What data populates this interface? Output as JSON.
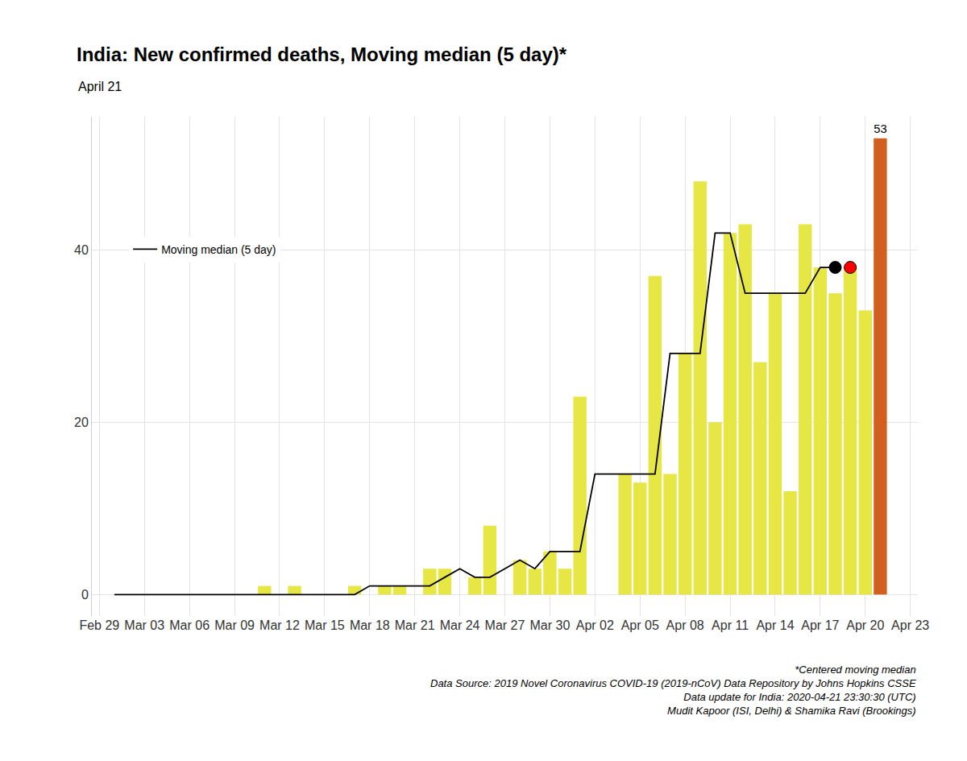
{
  "chart_data": {
    "type": "bar",
    "title": "India: New confirmed deaths, Moving median (5 day)*",
    "subtitle": "April 21",
    "caption": [
      "*Centered moving median",
      "Data Source: 2019 Novel Coronavirus COVID-19 (2019-nCoV) Data Repository by Johns Hopkins CSSE",
      "Data update for India: 2020-04-21 23:30:30 (UTC)",
      "Mudit Kapoor (ISI, Delhi) & Shamika Ravi (Brookings)"
    ],
    "categories": [
      "Feb 29",
      null,
      null,
      "Mar 03",
      null,
      null,
      "Mar 06",
      null,
      null,
      "Mar 09",
      null,
      null,
      "Mar 12",
      null,
      null,
      "Mar 15",
      null,
      null,
      "Mar 18",
      null,
      null,
      "Mar 21",
      null,
      null,
      "Mar 24",
      null,
      null,
      "Mar 27",
      null,
      null,
      "Mar 30",
      null,
      null,
      "Apr 02",
      null,
      null,
      "Apr 05",
      null,
      null,
      "Apr 08",
      null,
      null,
      "Apr 11",
      null,
      null,
      "Apr 14",
      null,
      null,
      "Apr 17",
      null,
      null,
      "Apr 20",
      null,
      null,
      "Apr 23"
    ],
    "series": [
      {
        "type": "bar",
        "values": [
          null,
          0,
          0,
          0,
          0,
          0,
          0,
          0,
          0,
          0,
          0,
          1,
          0,
          1,
          0,
          0,
          0,
          1,
          0,
          1,
          1,
          0,
          3,
          3,
          0,
          2,
          8,
          0,
          4,
          3,
          5,
          3,
          23,
          0,
          0,
          14,
          13,
          37,
          14,
          28,
          48,
          20,
          42,
          43,
          27,
          35,
          12,
          43,
          38,
          35,
          38,
          33,
          53,
          null,
          null
        ],
        "value_labels": [
          null,
          null,
          null,
          null,
          null,
          null,
          null,
          null,
          null,
          null,
          null,
          null,
          null,
          null,
          null,
          null,
          null,
          null,
          null,
          null,
          null,
          null,
          null,
          null,
          null,
          null,
          null,
          null,
          null,
          null,
          null,
          null,
          null,
          null,
          null,
          null,
          null,
          null,
          null,
          null,
          null,
          null,
          null,
          null,
          null,
          null,
          null,
          null,
          null,
          null,
          null,
          null,
          "53",
          null,
          null
        ],
        "colors": [
          "#e6e645",
          "#e6e645",
          "#e6e645",
          "#e6e645",
          "#e6e645",
          "#e6e645",
          "#e6e645",
          "#e6e645",
          "#e6e645",
          "#e6e645",
          "#e6e645",
          "#e6e645",
          "#e6e645",
          "#e6e645",
          "#e6e645",
          "#e6e645",
          "#e6e645",
          "#e6e645",
          "#e6e645",
          "#e6e645",
          "#e6e645",
          "#e6e645",
          "#e6e645",
          "#e6e645",
          "#e6e645",
          "#e6e645",
          "#e6e645",
          "#e6e645",
          "#e6e645",
          "#e6e645",
          "#e6e645",
          "#e6e645",
          "#e6e645",
          "#e6e645",
          "#e6e645",
          "#e6e645",
          "#e6e645",
          "#e6e645",
          "#e6e645",
          "#e6e645",
          "#e6e645",
          "#e6e645",
          "#e6e645",
          "#e6e645",
          "#e6e645",
          "#e6e645",
          "#e6e645",
          "#e6e645",
          "#e6e645",
          "#e6e645",
          "#e6e645",
          "#e6e645",
          "#d35f1f",
          "#e6e645",
          "#e6e645"
        ]
      },
      {
        "type": "line",
        "name": "Moving median (5 day)",
        "color": "#000000",
        "line_style": "solid",
        "values": [
          null,
          0,
          0,
          0,
          0,
          0,
          0,
          0,
          0,
          0,
          0,
          0,
          0,
          0,
          0,
          0,
          0,
          0,
          1,
          1,
          1,
          1,
          1,
          2,
          3,
          2,
          2,
          3,
          4,
          3,
          5,
          5,
          5,
          14,
          14,
          14,
          14,
          14,
          28,
          28,
          28,
          42,
          42,
          35,
          35,
          35,
          35,
          35,
          38,
          38,
          null,
          null,
          null,
          null,
          null
        ]
      },
      {
        "type": "scatter",
        "marker": "circle",
        "color": "#000000",
        "values": [
          null,
          null,
          null,
          null,
          null,
          null,
          null,
          null,
          null,
          null,
          null,
          null,
          null,
          null,
          null,
          null,
          null,
          null,
          null,
          null,
          null,
          null,
          null,
          null,
          null,
          null,
          null,
          null,
          null,
          null,
          null,
          null,
          null,
          null,
          null,
          null,
          null,
          null,
          null,
          null,
          null,
          null,
          null,
          null,
          null,
          null,
          null,
          null,
          null,
          38,
          null,
          null,
          null,
          null,
          null
        ]
      },
      {
        "type": "scatter",
        "marker": "circle",
        "color": "#ff0000",
        "values": [
          null,
          null,
          null,
          null,
          null,
          null,
          null,
          null,
          null,
          null,
          null,
          null,
          null,
          null,
          null,
          null,
          null,
          null,
          null,
          null,
          null,
          null,
          null,
          null,
          null,
          null,
          null,
          null,
          null,
          null,
          null,
          null,
          null,
          null,
          null,
          null,
          null,
          null,
          null,
          null,
          null,
          null,
          null,
          null,
          null,
          null,
          null,
          null,
          null,
          null,
          38,
          null,
          null,
          null,
          null
        ]
      }
    ],
    "ylim": [
      -2.5,
      55.5
    ],
    "yticks": [
      0,
      20,
      40
    ],
    "grid": true,
    "legend": "upper left",
    "data_labels": true
  }
}
